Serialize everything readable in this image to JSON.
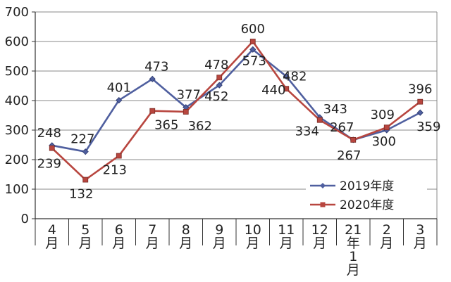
{
  "chart_data": {
    "type": "line",
    "categories": [
      "4\n月",
      "5\n月",
      "6\n月",
      "7\n月",
      "8\n月",
      "9\n月",
      "10\n月",
      "11\n月",
      "12\n月",
      "21\n年\n1\n月",
      "2\n月",
      "3\n月"
    ],
    "series": [
      {
        "name": "2019年度",
        "values": [
          248,
          227,
          401,
          473,
          377,
          452,
          573,
          482,
          343,
          267,
          300,
          359
        ],
        "color": "#4f5f9f",
        "marker": "diamond"
      },
      {
        "name": "2020年度",
        "values": [
          239,
          132,
          213,
          365,
          362,
          478,
          600,
          440,
          334,
          267,
          309,
          396
        ],
        "color": "#b8463f",
        "marker": "square"
      }
    ],
    "yticks": [
      0,
      100,
      200,
      300,
      400,
      500,
      600,
      700
    ],
    "ylim": [
      0,
      700
    ],
    "grid": true,
    "legend": "bottom-right"
  }
}
